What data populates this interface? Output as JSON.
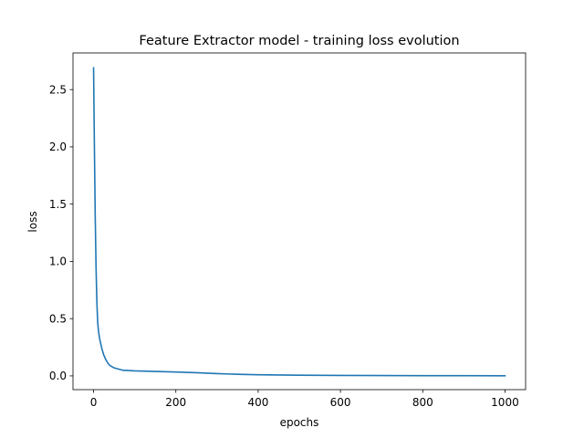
{
  "chart_data": {
    "type": "line",
    "title": "Feature Extractor model - training loss evolution",
    "xlabel": "epochs",
    "ylabel": "loss",
    "xlim": [
      -50,
      1050
    ],
    "ylim": [
      -0.12,
      2.82
    ],
    "xticks": [
      0,
      200,
      400,
      600,
      800,
      1000
    ],
    "xtick_labels": [
      "0",
      "200",
      "400",
      "600",
      "800",
      "1000"
    ],
    "yticks": [
      0.0,
      0.5,
      1.0,
      1.5,
      2.0,
      2.5
    ],
    "ytick_labels": [
      "0.0",
      "0.5",
      "1.0",
      "1.5",
      "2.0",
      "2.5"
    ],
    "grid": false,
    "legend": "none",
    "series": [
      {
        "name": "loss",
        "color": "#1f77b4",
        "x": [
          0,
          2,
          4,
          6,
          8,
          10,
          12,
          15,
          20,
          25,
          30,
          35,
          40,
          45,
          50,
          60,
          70,
          80,
          90,
          100,
          120,
          140,
          160,
          180,
          200,
          250,
          300,
          350,
          400,
          450,
          500,
          600,
          700,
          800,
          900,
          1000
        ],
        "y": [
          2.69,
          2.0,
          1.4,
          0.95,
          0.65,
          0.47,
          0.39,
          0.32,
          0.24,
          0.18,
          0.14,
          0.11,
          0.09,
          0.08,
          0.07,
          0.06,
          0.05,
          0.048,
          0.046,
          0.044,
          0.042,
          0.04,
          0.038,
          0.036,
          0.034,
          0.028,
          0.02,
          0.014,
          0.01,
          0.008,
          0.006,
          0.004,
          0.003,
          0.002,
          0.002,
          0.001
        ]
      }
    ]
  }
}
